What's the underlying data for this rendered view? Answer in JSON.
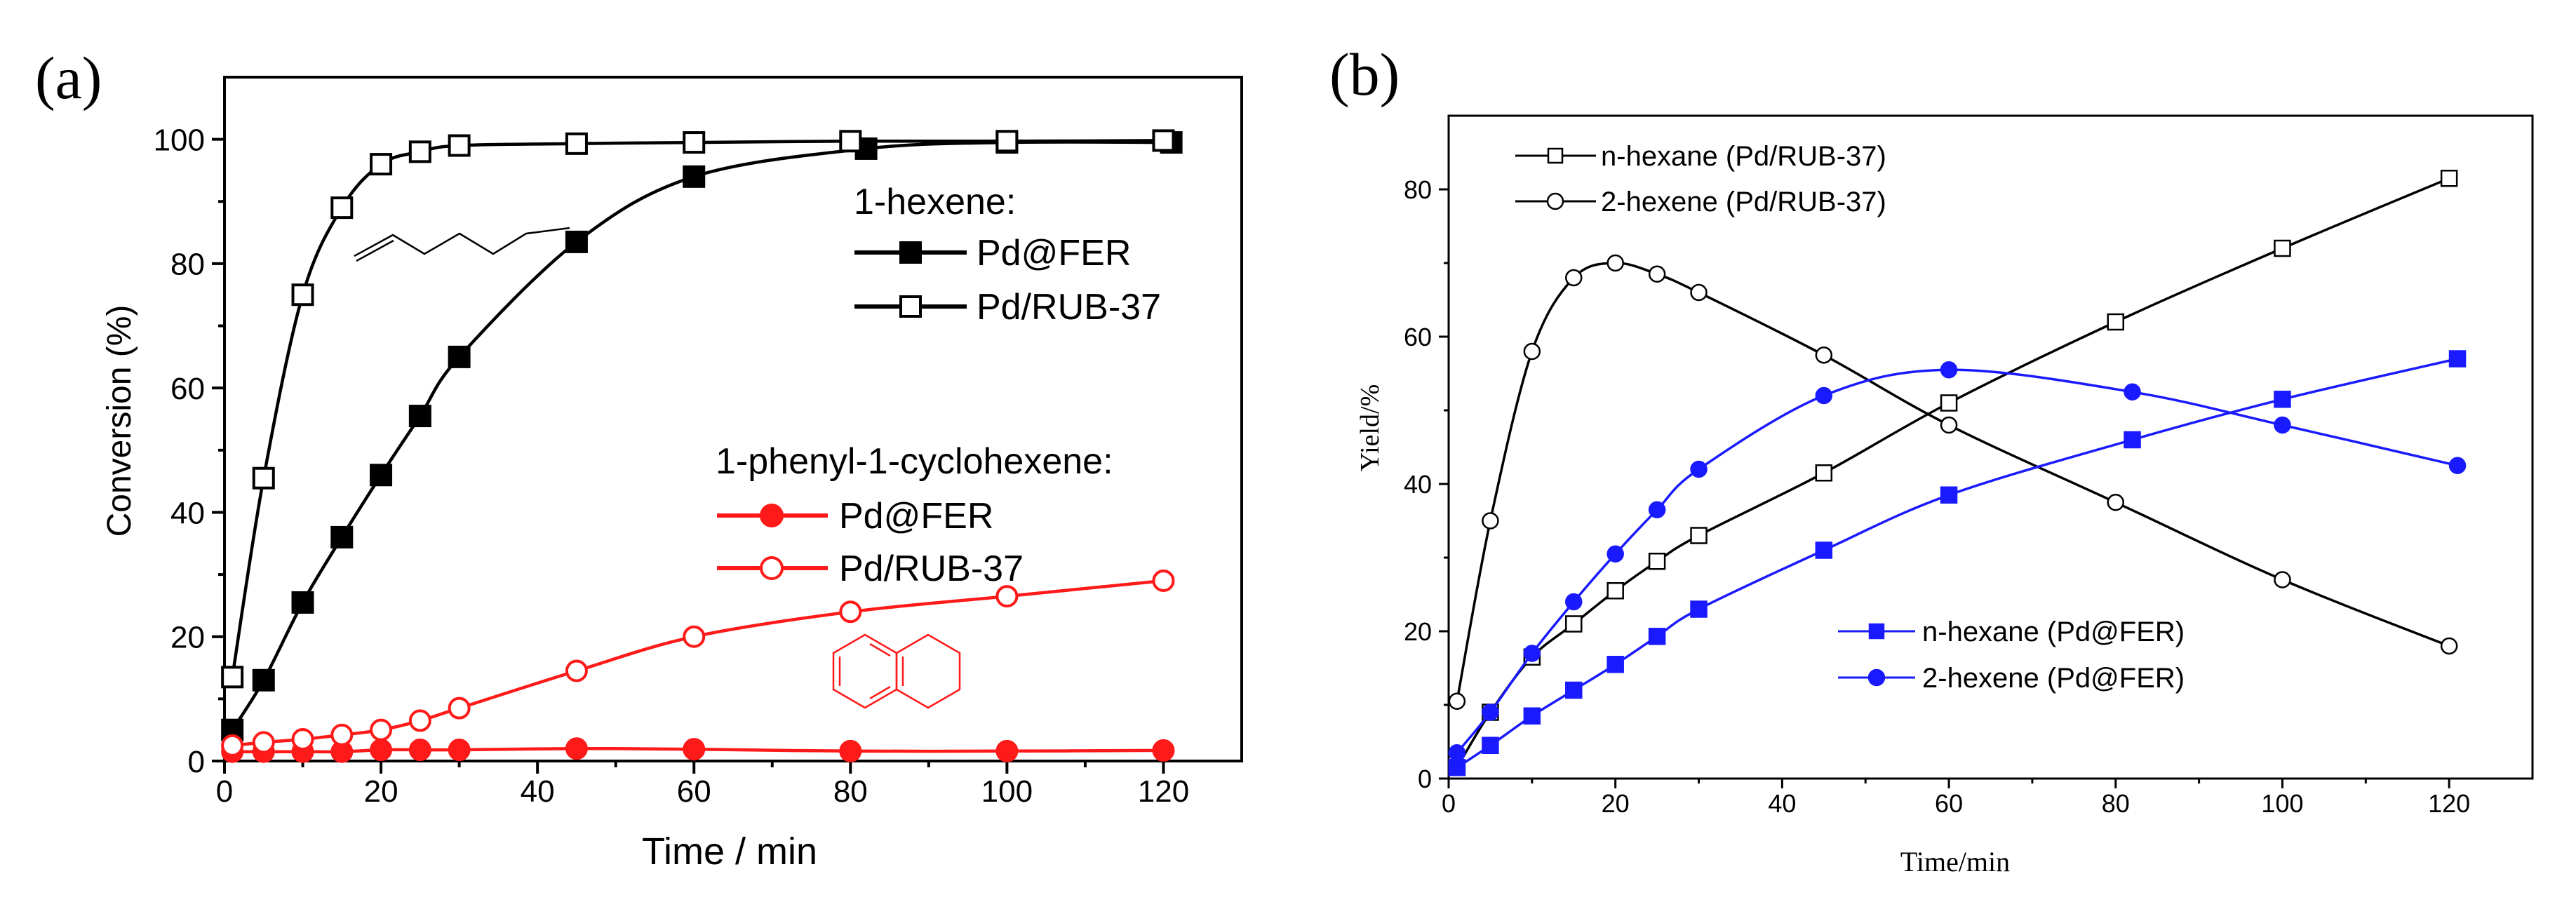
{
  "chart_data": [
    {
      "type": "line",
      "panel_label": "(a)",
      "xlabel": "Time / min",
      "ylabel": "Conversion (%)",
      "xlim": [
        0,
        130
      ],
      "ylim": [
        0,
        110
      ],
      "xticks": [
        "0",
        "20",
        "40",
        "60",
        "80",
        "100",
        "120"
      ],
      "yticks": [
        "0",
        "20",
        "40",
        "60",
        "80",
        "100"
      ],
      "legend_groups": [
        {
          "heading": "1-hexene:",
          "entries": [
            "Pd@FER",
            "Pd/RUB-37"
          ]
        },
        {
          "heading": "1-phenyl-1-cyclohexene:",
          "entries": [
            "Pd@FER",
            "Pd/RUB-37"
          ]
        }
      ],
      "series": [
        {
          "name": "Pd@FER",
          "group": "1-hexene",
          "color": "#000000",
          "marker": "square",
          "filled": true,
          "x": [
            1,
            5,
            10,
            15,
            20,
            25,
            30,
            45,
            60,
            82,
            100,
            121
          ],
          "y": [
            5,
            13,
            25.5,
            36,
            46,
            55.5,
            65,
            83.5,
            94,
            98.5,
            99.5,
            99.5
          ]
        },
        {
          "name": "Pd/RUB-37",
          "group": "1-hexene",
          "color": "#000000",
          "marker": "square",
          "filled": false,
          "x": [
            1,
            5,
            10,
            15,
            20,
            25,
            30,
            45,
            60,
            80,
            100,
            120
          ],
          "y": [
            13.5,
            45.5,
            75,
            89,
            96,
            98,
            99,
            99.3,
            99.5,
            99.7,
            99.7,
            99.8
          ]
        },
        {
          "name": "Pd@FER",
          "group": "1-phenyl-1-cyclohexene",
          "color": "#ff1a1a",
          "marker": "circle",
          "filled": true,
          "x": [
            1,
            5,
            10,
            15,
            20,
            25,
            30,
            45,
            60,
            80,
            100,
            120
          ],
          "y": [
            1.5,
            1.5,
            1.5,
            1.5,
            1.8,
            1.8,
            1.8,
            2,
            1.9,
            1.6,
            1.6,
            1.7
          ]
        },
        {
          "name": "Pd/RUB-37",
          "group": "1-phenyl-1-cyclohexene",
          "color": "#ff1a1a",
          "marker": "circle",
          "filled": false,
          "x": [
            1,
            5,
            10,
            15,
            20,
            25,
            30,
            45,
            60,
            80,
            100,
            120
          ],
          "y": [
            2.5,
            3,
            3.5,
            4.2,
            5,
            6.5,
            8.5,
            14.5,
            20,
            24,
            26.5,
            29
          ]
        }
      ]
    },
    {
      "type": "line",
      "panel_label": "(b)",
      "xlabel": "Time/min",
      "ylabel": "Yield/%",
      "xlim": [
        0,
        130
      ],
      "ylim": [
        0,
        90
      ],
      "xticks": [
        "0",
        "20",
        "40",
        "60",
        "80",
        "100",
        "120"
      ],
      "yticks": [
        "0",
        "20",
        "40",
        "60",
        "80"
      ],
      "series": [
        {
          "name": "n-hexane (Pd/RUB-37)",
          "color": "#000000",
          "marker": "square",
          "filled": false,
          "x": [
            1,
            5,
            10,
            15,
            20,
            25,
            30,
            45,
            60,
            80,
            100,
            120
          ],
          "y": [
            1.5,
            9,
            16.5,
            21,
            25.5,
            29.5,
            33,
            41.5,
            51,
            62,
            72,
            81.5
          ]
        },
        {
          "name": "2-hexene (Pd/RUB-37)",
          "color": "#000000",
          "marker": "circle",
          "filled": false,
          "x": [
            1,
            5,
            10,
            15,
            20,
            25,
            30,
            45,
            60,
            80,
            100,
            120
          ],
          "y": [
            10.5,
            35,
            58,
            68,
            70,
            68.5,
            66,
            57.5,
            48,
            37.5,
            27,
            18
          ]
        },
        {
          "name": "n-hexane (Pd@FER)",
          "color": "#1a1aff",
          "marker": "square",
          "filled": true,
          "x": [
            1,
            5,
            10,
            15,
            20,
            25,
            30,
            45,
            60,
            82,
            100,
            121
          ],
          "y": [
            1.5,
            4.5,
            8.5,
            12,
            15.5,
            19.3,
            23,
            31,
            38.5,
            46,
            51.5,
            57
          ]
        },
        {
          "name": "2-hexene (Pd@FER)",
          "color": "#1a1aff",
          "marker": "circle",
          "filled": true,
          "x": [
            1,
            5,
            10,
            15,
            20,
            25,
            30,
            45,
            60,
            82,
            100,
            121
          ],
          "y": [
            3.5,
            9,
            17,
            24,
            30.5,
            36.5,
            42,
            52,
            55.5,
            52.5,
            48,
            42.5
          ]
        }
      ]
    }
  ]
}
